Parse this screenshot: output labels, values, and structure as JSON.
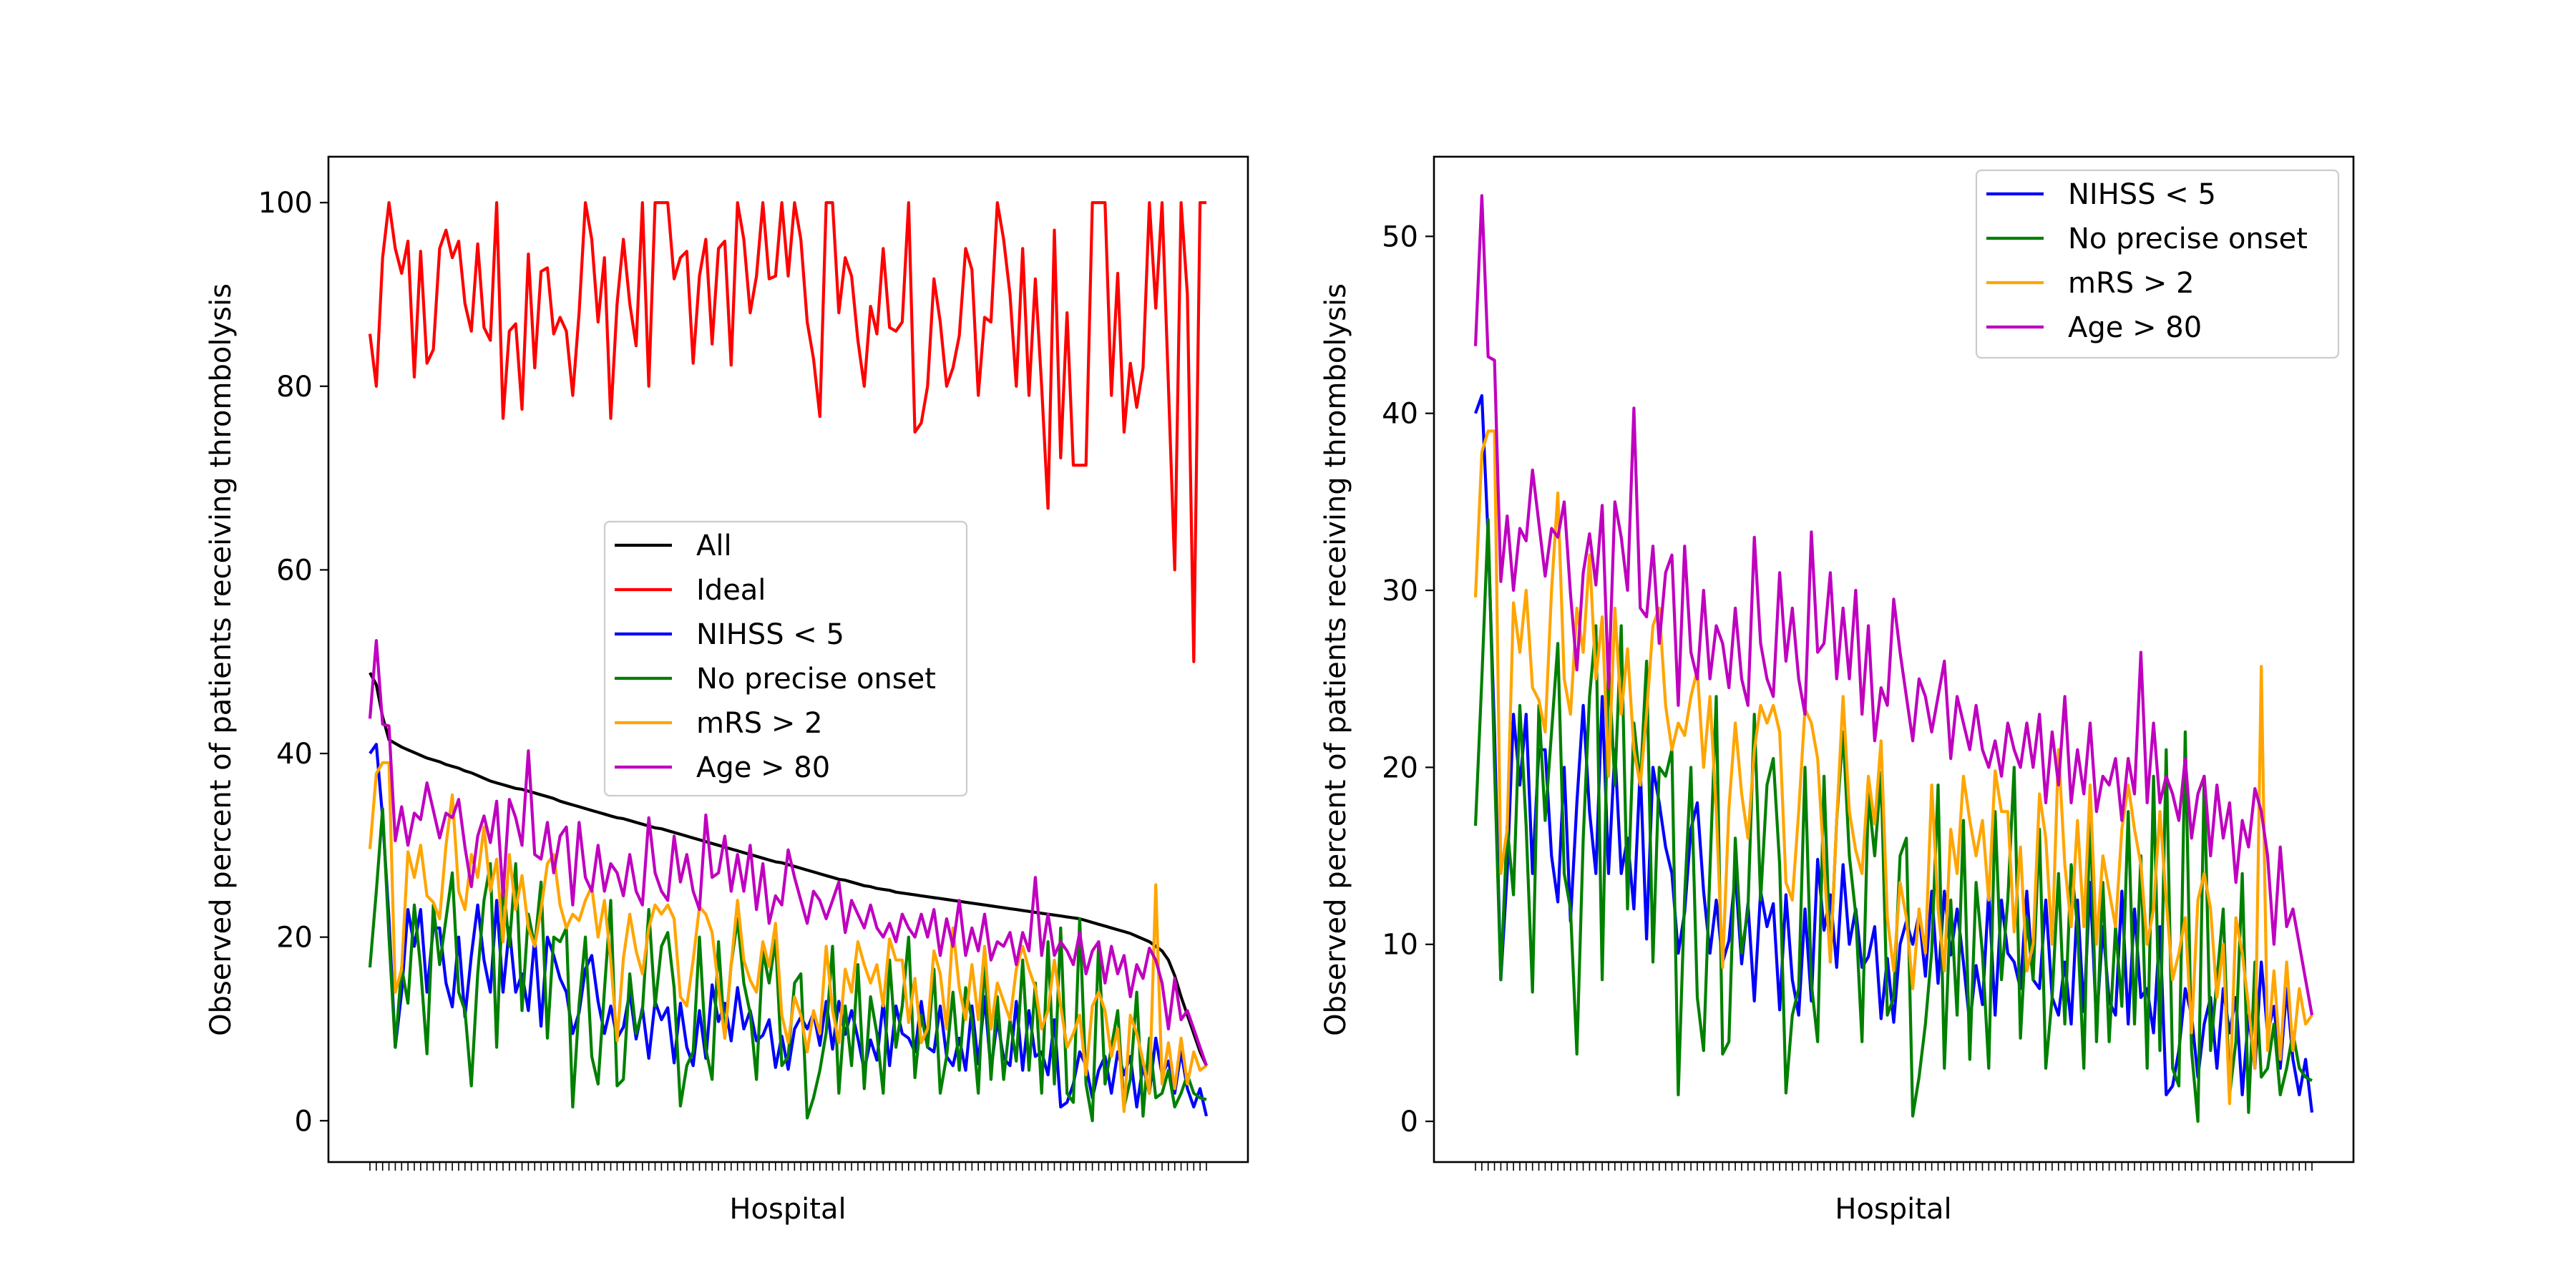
{
  "chart_data": [
    {
      "type": "line",
      "panel": "left",
      "xlabel": "Hospital",
      "ylabel": "Observed percent of patients receiving thrombolysis",
      "ylim": [
        -4.5,
        105
      ],
      "yticks": [
        0,
        20,
        40,
        60,
        80,
        100
      ],
      "legend_placement": "center",
      "grid": false,
      "x_count": 133,
      "series": [
        {
          "name": "All",
          "color": "#000000",
          "values": [
            48.8,
            47.5,
            44.0,
            41.5,
            41.1,
            40.7,
            40.4,
            40.1,
            39.8,
            39.5,
            39.3,
            39.1,
            38.8,
            38.6,
            38.4,
            38.1,
            37.9,
            37.6,
            37.3,
            37.0,
            36.8,
            36.6,
            36.4,
            36.2,
            36.1,
            35.9,
            35.7,
            35.5,
            35.3,
            35.1,
            34.8,
            34.6,
            34.4,
            34.2,
            34.0,
            33.8,
            33.6,
            33.4,
            33.2,
            33.0,
            32.9,
            32.7,
            32.5,
            32.3,
            32.1,
            31.9,
            31.8,
            31.6,
            31.4,
            31.2,
            31.0,
            30.8,
            30.6,
            30.4,
            30.2,
            30.0,
            29.8,
            29.6,
            29.4,
            29.2,
            29.0,
            28.8,
            28.6,
            28.4,
            28.2,
            28.1,
            27.9,
            27.7,
            27.5,
            27.3,
            27.1,
            26.9,
            26.7,
            26.5,
            26.3,
            26.2,
            26.0,
            25.8,
            25.6,
            25.5,
            25.3,
            25.2,
            25.1,
            24.9,
            24.8,
            24.7,
            24.6,
            24.5,
            24.4,
            24.3,
            24.2,
            24.1,
            24.0,
            23.9,
            23.8,
            23.7,
            23.6,
            23.5,
            23.4,
            23.3,
            23.2,
            23.1,
            23.0,
            22.9,
            22.8,
            22.7,
            22.6,
            22.5,
            22.4,
            22.3,
            22.2,
            22.1,
            22.0,
            21.8,
            21.6,
            21.4,
            21.2,
            21.0,
            20.8,
            20.6,
            20.4,
            20.1,
            19.8,
            19.5,
            19.0,
            18.5,
            17.5,
            15.8,
            13.5,
            11.5,
            9.5,
            7.5,
            6.0
          ]
        },
        {
          "name": "Ideal",
          "color": "#ff0000",
          "values": [
            85.7,
            80.0,
            94.0,
            100.0,
            95.0,
            92.3,
            95.8,
            81.0,
            94.7,
            82.5,
            84.0,
            95.0,
            97.0,
            94.0,
            95.8,
            89.0,
            86.0,
            95.5,
            86.4,
            85.0,
            100.0,
            76.5,
            86.0,
            86.8,
            77.5,
            94.4,
            82.0,
            92.5,
            92.9,
            85.7,
            87.5,
            86.0,
            79.0,
            88.0,
            100.0,
            96.0,
            87.0,
            94.0,
            76.5,
            89.0,
            96.0,
            89.0,
            84.4,
            100.0,
            80.0,
            100.0,
            100.0,
            100.0,
            91.7,
            94.0,
            94.7,
            82.5,
            92.0,
            96.0,
            84.6,
            95.0,
            95.8,
            82.3,
            100.0,
            96.0,
            88.0,
            92.0,
            100.0,
            91.7,
            92.0,
            100.0,
            92.0,
            100.0,
            96.0,
            87.0,
            83.0,
            76.7,
            100.0,
            100.0,
            88.0,
            94.0,
            92.0,
            85.0,
            80.0,
            88.7,
            85.7,
            95.0,
            86.4,
            86.0,
            87.0,
            100.0,
            75.0,
            76.0,
            80.0,
            91.7,
            87.0,
            80.0,
            82.0,
            85.5,
            95.0,
            92.7,
            79.0,
            87.5,
            87.0,
            100.0,
            96.0,
            90.0,
            80.0,
            95.0,
            79.0,
            91.7,
            80.0,
            66.7,
            97.0,
            72.2,
            88.0,
            71.4,
            71.4,
            71.4,
            100.0,
            100.0,
            100.0,
            79.0,
            92.3,
            75.0,
            82.5,
            77.7,
            82.0,
            100.0,
            88.5,
            100.0,
            80.0,
            60.0,
            100.0,
            90.0,
            50.0,
            100.0,
            100.0
          ]
        },
        {
          "name": "NIHSS < 5",
          "color": "#0000ff",
          "values": [
            40.0,
            41.0,
            33.0,
            22.0,
            8.0,
            14.0,
            23.0,
            19.0,
            23.0,
            14.0,
            21.0,
            21.0,
            15.0,
            12.4,
            20.0,
            11.3,
            18.0,
            23.5,
            17.5,
            14.0,
            24.0,
            14.0,
            21.0,
            14.0,
            16.0,
            12.0,
            20.0,
            10.3,
            20.0,
            18.0,
            15.5,
            14.0,
            9.5,
            11.8,
            16.5,
            18.0,
            13.0,
            9.5,
            12.5,
            9.0,
            10.2,
            14.0,
            8.9,
            12.3,
            6.8,
            13.0,
            11.0,
            12.3,
            6.3,
            12.8,
            8.0,
            6.0,
            12.0,
            6.8,
            14.8,
            10.8,
            12.8,
            8.7,
            14.5,
            10.0,
            12.0,
            8.7,
            9.3,
            11.0,
            5.8,
            9.2,
            5.6,
            10.0,
            11.3,
            10.0,
            11.7,
            8.2,
            13.0,
            7.8,
            13.0,
            9.4,
            12.0,
            9.0,
            5.5,
            8.8,
            6.6,
            13.0,
            6.0,
            12.5,
            9.5,
            9.0,
            7.5,
            13.0,
            8.0,
            7.5,
            12.5,
            7.0,
            6.0,
            9.0,
            5.5,
            12.5,
            6.2,
            13.5,
            5.5,
            11.0,
            6.8,
            6.0,
            13.0,
            5.5,
            12.0,
            7.0,
            7.5,
            5.0,
            11.0,
            1.5,
            2.0,
            4.0,
            7.5,
            6.0,
            2.5,
            5.5,
            7.0,
            3.0,
            7.5,
            5.0,
            7.0,
            1.5,
            6.0,
            3.0,
            9.0,
            5.0,
            6.5,
            3.0,
            7.5,
            3.5,
            1.5,
            3.5,
            0.5
          ]
        },
        {
          "name": "No precise onset",
          "color": "#008000",
          "values": [
            16.7,
            25.0,
            34.0,
            20.0,
            8.0,
            16.7,
            12.8,
            23.5,
            16.7,
            7.3,
            23.5,
            17.0,
            22.0,
            27.0,
            14.0,
            12.0,
            3.8,
            16.0,
            24.0,
            28.0,
            8.0,
            26.0,
            19.0,
            28.0,
            12.0,
            22.5,
            19.0,
            26.0,
            9.0,
            20.0,
            19.5,
            21.0,
            1.5,
            12.7,
            20.0,
            7.0,
            4.0,
            14.2,
            24.0,
            3.8,
            4.5,
            16.0,
            9.5,
            12.0,
            23.0,
            12.5,
            19.0,
            20.5,
            14.5,
            1.6,
            6.0,
            7.5,
            20.0,
            7.8,
            4.5,
            19.5,
            9.0,
            17.0,
            22.0,
            15.0,
            11.7,
            4.5,
            18.5,
            15.0,
            19.7,
            6.0,
            7.0,
            15.0,
            16.0,
            0.3,
            2.5,
            5.5,
            9.6,
            19.0,
            3.0,
            12.5,
            6.0,
            17.0,
            3.5,
            13.5,
            9.5,
            3.0,
            17.5,
            8.0,
            12.5,
            20.0,
            4.7,
            11.5,
            8.0,
            16.5,
            3.0,
            7.0,
            14.0,
            5.5,
            14.5,
            11.0,
            3.0,
            18.0,
            4.5,
            13.5,
            4.5,
            11.0,
            6.5,
            17.5,
            5.5,
            15.0,
            3.0,
            19.5,
            4.0,
            21.0,
            3.0,
            2.0,
            22.0,
            4.0,
            0.0,
            19.5,
            4.0,
            8.0,
            12.0,
            1.5,
            4.5,
            14.0,
            0.5,
            9.0,
            2.5,
            3.0,
            5.5,
            1.5,
            3.0,
            5.0,
            3.0,
            2.5,
            2.3
          ]
        },
        {
          "name": "mRS > 2",
          "color": "#ffa500",
          "values": [
            29.6,
            37.8,
            39.0,
            39.0,
            14.0,
            16.5,
            29.3,
            26.5,
            30.0,
            24.5,
            23.8,
            22.0,
            30.0,
            35.5,
            25.0,
            23.0,
            29.0,
            26.5,
            32.0,
            25.0,
            28.5,
            19.5,
            29.0,
            23.0,
            26.7,
            21.0,
            19.0,
            23.0,
            28.0,
            29.0,
            23.5,
            21.0,
            22.5,
            21.8,
            24.0,
            25.5,
            20.0,
            24.0,
            17.5,
            8.7,
            17.7,
            22.5,
            18.5,
            16.0,
            21.0,
            23.5,
            22.5,
            23.5,
            22.0,
            13.5,
            12.5,
            17.5,
            23.3,
            22.5,
            20.5,
            14.5,
            9.0,
            17.0,
            24.0,
            17.5,
            15.3,
            14.0,
            19.5,
            16.8,
            21.5,
            11.5,
            8.5,
            13.5,
            11.5,
            7.5,
            12.0,
            9.5,
            19.0,
            12.0,
            8.5,
            16.5,
            14.0,
            19.5,
            17.0,
            15.0,
            17.0,
            12.5,
            19.8,
            17.5,
            17.5,
            10.7,
            15.5,
            8.5,
            10.0,
            18.5,
            16.0,
            10.0,
            21.0,
            14.5,
            11.0,
            17.0,
            11.0,
            19.0,
            10.0,
            15.0,
            13.0,
            11.0,
            16.5,
            19.0,
            16.5,
            14.5,
            10.0,
            12.0,
            17.5,
            12.5,
            8.0,
            9.5,
            11.5,
            5.0,
            12.5,
            14.0,
            12.0,
            7.0,
            10.0,
            1.0,
            11.5,
            9.5,
            6.5,
            3.0,
            25.7,
            4.0,
            8.5,
            3.5,
            9.0,
            4.0,
            7.5,
            5.5,
            6.0
          ]
        },
        {
          "name": "Age > 80",
          "color": "#bf00bf",
          "values": [
            43.8,
            52.3,
            43.2,
            43.0,
            30.5,
            34.2,
            30.0,
            33.5,
            32.8,
            36.8,
            33.8,
            30.8,
            33.5,
            33.0,
            35.0,
            29.8,
            25.5,
            31.0,
            33.2,
            30.3,
            34.8,
            24.5,
            35.0,
            33.0,
            30.0,
            40.3,
            29.0,
            28.5,
            32.5,
            27.0,
            31.0,
            32.0,
            23.5,
            32.5,
            26.5,
            25.0,
            30.0,
            25.0,
            28.0,
            27.0,
            24.5,
            29.0,
            25.0,
            23.5,
            33.0,
            27.0,
            25.0,
            24.0,
            31.0,
            26.0,
            29.0,
            25.0,
            23.0,
            33.3,
            26.5,
            27.0,
            31.0,
            25.0,
            29.0,
            25.0,
            30.0,
            23.0,
            28.0,
            21.5,
            24.5,
            23.5,
            29.5,
            26.5,
            24.0,
            21.5,
            25.0,
            24.0,
            22.0,
            24.0,
            26.0,
            20.5,
            24.0,
            22.5,
            21.0,
            23.5,
            21.0,
            20.0,
            21.5,
            19.5,
            22.5,
            21.0,
            20.0,
            22.5,
            20.0,
            23.0,
            18.0,
            22.0,
            19.0,
            24.0,
            18.0,
            21.0,
            18.5,
            22.5,
            17.5,
            19.5,
            19.0,
            20.5,
            17.0,
            20.5,
            18.5,
            26.5,
            18.0,
            22.5,
            18.0,
            19.5,
            18.5,
            17.0,
            20.5,
            16.0,
            18.5,
            19.5,
            15.0,
            19.0,
            16.0,
            18.0,
            13.5,
            17.0,
            15.5,
            18.8,
            17.5,
            15.0,
            10.0,
            15.5,
            11.0,
            12.0,
            10.0,
            8.0,
            6.0
          ]
        }
      ]
    },
    {
      "type": "line",
      "panel": "right",
      "xlabel": "Hospital",
      "ylabel": "Observed percent of patients receiving thrombolysis",
      "ylim": [
        -2.3,
        54.5
      ],
      "yticks": [
        0,
        10,
        20,
        30,
        40,
        50
      ],
      "legend_placement": "upper right",
      "grid": false,
      "x_count": 133,
      "series_ref": [
        "NIHSS < 5",
        "No precise onset",
        "mRS > 2",
        "Age > 80"
      ]
    }
  ]
}
